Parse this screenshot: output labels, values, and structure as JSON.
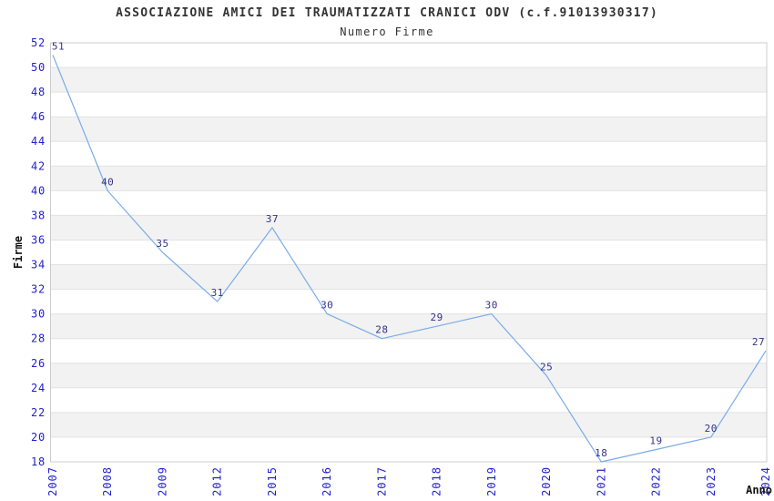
{
  "header": {
    "title": "ASSOCIAZIONE AMICI DEI TRAUMATIZZATI CRANICI ODV (c.f.91013930317)",
    "subtitle": "Numero Firme"
  },
  "chart_data": {
    "type": "line",
    "title": "ASSOCIAZIONE AMICI DEI TRAUMATIZZATI CRANICI ODV (c.f.91013930317)",
    "subtitle": "Numero Firme",
    "categories": [
      "2007",
      "2008",
      "2009",
      "2012",
      "2015",
      "2016",
      "2017",
      "2018",
      "2019",
      "2020",
      "2021",
      "2022",
      "2023",
      "2024"
    ],
    "values": [
      51,
      40,
      35,
      31,
      37,
      30,
      28,
      29,
      30,
      25,
      18,
      19,
      20,
      27
    ],
    "xlabel": "Anno",
    "ylabel": "Firme",
    "ylim": [
      18,
      52
    ],
    "ytick_step": 2,
    "grid": "horizontal-alternating-bands",
    "legend_position": "none",
    "colors": {
      "line": "#79abe8",
      "tick_label": "#2222cc",
      "value_label": "#333388",
      "band_fill": "#f2f2f2",
      "grid_line": "#e2e2e2",
      "plot_border": "#cccccc",
      "title_text": "#333333",
      "axis_title_text": "#111111",
      "background": "#ffffff"
    }
  }
}
